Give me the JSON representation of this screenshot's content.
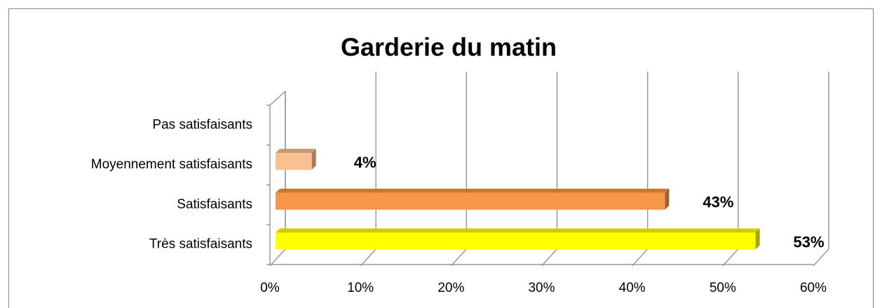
{
  "chart_data": {
    "type": "bar3d_horizontal",
    "title": "Garderie du matin",
    "categories": [
      "Pas satisfaisants",
      "Moyennement satisfaisants",
      "Satisfaisants",
      "Très satisfaisants"
    ],
    "values": [
      null,
      4,
      43,
      53
    ],
    "value_labels": [
      null,
      "4%",
      "43%",
      "53%"
    ],
    "colors": [
      null,
      "#fac090",
      "#f79646",
      "#ffff00"
    ],
    "xlim": [
      0,
      60
    ],
    "xticks": [
      {
        "value": 0,
        "label": "0%"
      },
      {
        "value": 10,
        "label": "10%"
      },
      {
        "value": 20,
        "label": "20%"
      },
      {
        "value": 30,
        "label": "30%"
      },
      {
        "value": 40,
        "label": "40%"
      },
      {
        "value": 50,
        "label": "50%"
      },
      {
        "value": 60,
        "label": "60%"
      }
    ],
    "grid": true
  }
}
